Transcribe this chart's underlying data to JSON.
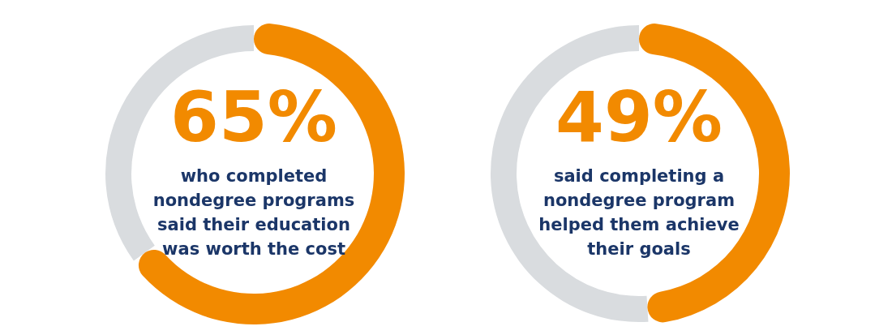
{
  "chart_data": [
    {
      "type": "donut",
      "categories": [
        null,
        null
      ],
      "values": [
        65,
        35
      ],
      "colors": [
        "#f28a00",
        "#d9dcdf"
      ],
      "value_labels": [
        "65%",
        null
      ],
      "annotations": [
        "who completed nondegree programs said their education was worth the cost"
      ]
    },
    {
      "type": "donut",
      "categories": [
        null,
        null
      ],
      "values": [
        49,
        51
      ],
      "colors": [
        "#f28a00",
        "#d9dcdf"
      ],
      "value_labels": [
        "49%",
        null
      ],
      "annotations": [
        "said completing a nondegree program helped them achieve their goals"
      ]
    }
  ]
}
